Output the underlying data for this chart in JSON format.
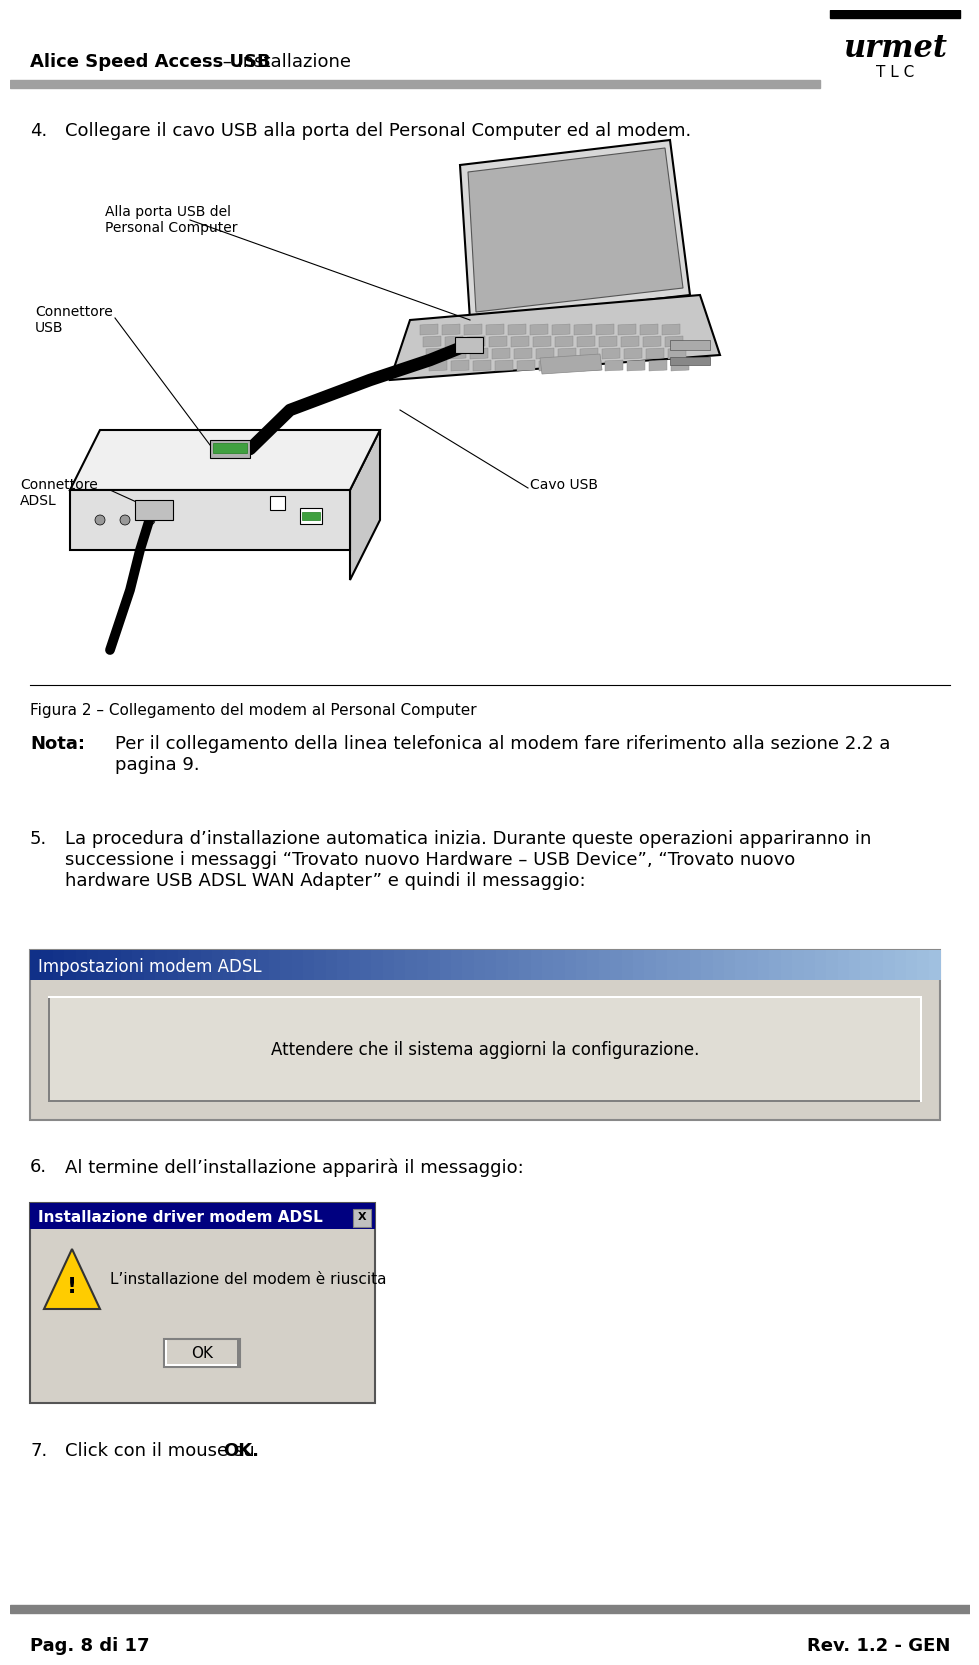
{
  "bg_color": "#ffffff",
  "header_title_bold": "Alice Speed Access USB",
  "header_title_normal": " – Installazione",
  "header_line_color": "#808080",
  "logo_text_top": "urmet",
  "logo_text_bottom": "T L C",
  "section4_num": "4.",
  "section4_text": "Collegare il cavo USB alla porta del Personal Computer ed al modem.",
  "label_porta": "Alla porta USB del\nPersonal Computer",
  "label_connettore_usb": "Connettore\nUSB",
  "label_connettore_adsl": "Connettore\nADSL",
  "label_cavo_usb": "Cavo USB",
  "figura_text": "Figura 2 – Collegamento del modem al Personal Computer",
  "nota_label": "Nota:",
  "nota_text": "Per il collegamento della linea telefonica al modem fare riferimento alla sezione 2.2 a\npagina 9.",
  "section5_num": "5.",
  "section5_text": "La procedura d’installazione automatica inizia. Durante queste operazioni appariranno in\nsuccessione i messaggi “Trovato nuovo Hardware – USB Device”, “Trovato nuovo\nhardware USB ADSL WAN Adapter” e quindi il messaggio:",
  "dialog1_title": "Impostazioni modem ADSL",
  "dialog1_body": "Attendere che il sistema aggiorni la configurazione.",
  "dialog1_bg": "#d4d0c8",
  "section6_num": "6.",
  "section6_text": "Al termine dell’installazione apparirà il messaggio:",
  "dialog2_title": "Installazione driver modem ADSL",
  "dialog2_title_bg": "#000080",
  "dialog2_title_fg": "#ffffff",
  "dialog2_body_text": "L’installazione del modem è riuscita",
  "dialog2_ok": "OK",
  "dialog2_bg": "#d4d0c8",
  "section7_num": "7.",
  "section7_text_normal": "Click con il mouse su ",
  "section7_text_bold": "OK.",
  "footer_left": "Pag. 8 di 17",
  "footer_right": "Rev. 1.2 - GEN",
  "footer_line_color": "#808080"
}
